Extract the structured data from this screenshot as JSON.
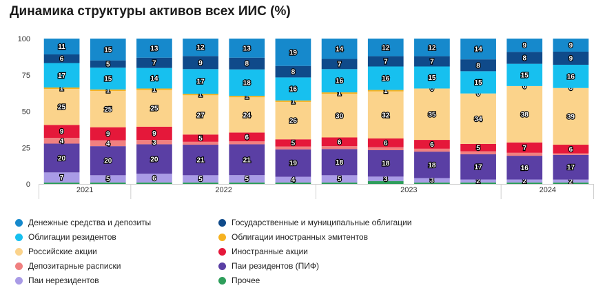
{
  "title": "Динамика структуры активов всех ИИС (%)",
  "chart_data": {
    "type": "bar",
    "stacked": true,
    "title": "Динамика структуры активов всех ИИС (%)",
    "xlabel": "",
    "ylabel": "",
    "ylim": [
      0,
      100
    ],
    "yticks": [
      0,
      25,
      50,
      75,
      100
    ],
    "grid": false,
    "legend_position": "bottom",
    "x_groups": [
      {
        "label": "2021",
        "bar_count": 2
      },
      {
        "label": "2022",
        "bar_count": 4
      },
      {
        "label": "2023",
        "bar_count": 4
      },
      {
        "label": "2024",
        "bar_count": 2
      }
    ],
    "series": [
      {
        "name": "Прочее",
        "color": "#2e9e5b",
        "values": [
          1,
          1,
          1,
          1,
          1,
          1,
          1,
          2,
          1,
          1,
          1,
          1
        ],
        "labels": [
          null,
          null,
          null,
          null,
          null,
          null,
          null,
          null,
          null,
          null,
          null,
          null
        ]
      },
      {
        "name": "Паи нерезидентов",
        "color": "#a99be6",
        "values": [
          7,
          5,
          6,
          5,
          5,
          4,
          5,
          3,
          3,
          2,
          2,
          2
        ],
        "labels": [
          7,
          5,
          6,
          5,
          5,
          4,
          5,
          3,
          3,
          2,
          2,
          2
        ]
      },
      {
        "name": "Паи резидентов (ПИФ)",
        "color": "#5a3fa4",
        "values": [
          20,
          20,
          20,
          21,
          21,
          19,
          18,
          18,
          18,
          17,
          16,
          17
        ],
        "labels": [
          20,
          20,
          20,
          21,
          21,
          19,
          18,
          18,
          18,
          17,
          16,
          17
        ]
      },
      {
        "name": "Депозитарные расписки",
        "color": "#f08080",
        "values": [
          4,
          4,
          3,
          2,
          2,
          2,
          2,
          2,
          2,
          2,
          2,
          1
        ],
        "labels": [
          4,
          4,
          3,
          null,
          null,
          null,
          null,
          null,
          null,
          null,
          null,
          null
        ]
      },
      {
        "name": "Иностранные акции",
        "color": "#e5183a",
        "values": [
          9,
          9,
          9,
          5,
          6,
          5,
          6,
          6,
          6,
          5,
          7,
          6
        ],
        "labels": [
          9,
          9,
          9,
          5,
          6,
          5,
          6,
          6,
          6,
          5,
          7,
          6
        ]
      },
      {
        "name": "Российские акции",
        "color": "#fbd38b",
        "values": [
          25,
          25,
          25,
          27,
          24,
          26,
          30,
          32,
          35,
          34,
          38,
          39
        ],
        "labels": [
          25,
          25,
          25,
          27,
          24,
          26,
          30,
          32,
          35,
          34,
          38,
          39
        ]
      },
      {
        "name": "Облигации иностранных эмитентов",
        "color": "#f6b221",
        "values": [
          1,
          1,
          1,
          1,
          1,
          1,
          1,
          1,
          0,
          0,
          0,
          0
        ],
        "labels": [
          1,
          1,
          1,
          1,
          1,
          1,
          1,
          1,
          0,
          0,
          0,
          0
        ]
      },
      {
        "name": "Облигации резидентов",
        "color": "#17c0ef",
        "values": [
          17,
          15,
          14,
          17,
          18,
          16,
          16,
          16,
          15,
          15,
          15,
          16
        ],
        "labels": [
          17,
          15,
          14,
          17,
          18,
          16,
          16,
          16,
          15,
          15,
          15,
          16
        ]
      },
      {
        "name": "Государственные и муниципальные облигации",
        "color": "#0f4a8a",
        "values": [
          6,
          5,
          7,
          9,
          8,
          8,
          7,
          7,
          7,
          8,
          8,
          9
        ],
        "labels": [
          6,
          5,
          7,
          9,
          8,
          8,
          7,
          7,
          7,
          8,
          8,
          9
        ]
      },
      {
        "name": "Денежные средства и депозиты",
        "color": "#1689cc",
        "values": [
          11,
          15,
          13,
          12,
          13,
          19,
          14,
          12,
          12,
          14,
          9,
          9
        ],
        "labels": [
          11,
          15,
          13,
          12,
          13,
          19,
          14,
          12,
          12,
          14,
          9,
          9
        ]
      }
    ]
  },
  "legend": [
    {
      "name": "Денежные средства и депозиты",
      "color": "#1689cc"
    },
    {
      "name": "Государственные и муниципальные облигации",
      "color": "#0f4a8a"
    },
    {
      "name": "Облигации резидентов",
      "color": "#17c0ef"
    },
    {
      "name": "Облигации иностранных эмитентов",
      "color": "#f6b221"
    },
    {
      "name": "Российские акции",
      "color": "#fbd38b"
    },
    {
      "name": "Иностранные акции",
      "color": "#e5183a"
    },
    {
      "name": "Депозитарные расписки",
      "color": "#f08080"
    },
    {
      "name": "Паи резидентов (ПИФ)",
      "color": "#5a3fa4"
    },
    {
      "name": "Паи нерезидентов",
      "color": "#a99be6"
    },
    {
      "name": "Прочее",
      "color": "#2e9e5b"
    }
  ]
}
